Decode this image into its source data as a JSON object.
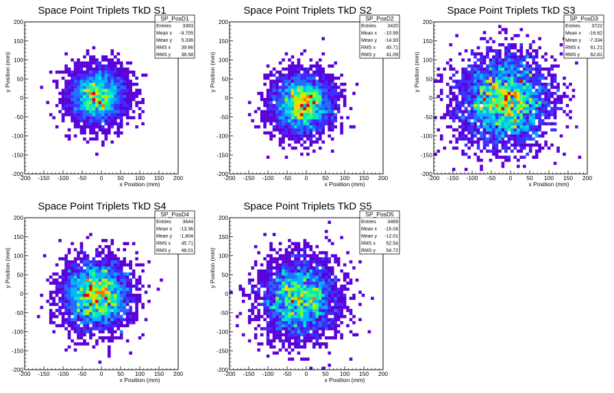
{
  "colormap": [
    "#5a00d8",
    "#3d2cff",
    "#1f6dff",
    "#00b4ff",
    "#00e6c8",
    "#3cff78",
    "#b4f000",
    "#ffd200",
    "#ff6e00",
    "#e60000"
  ],
  "chart_data": [
    {
      "type": "heatmap",
      "title": "Space Point Triplets TkD S1",
      "xlabel": "x Position (mm)",
      "ylabel": "y Position (mm)",
      "xlim": [
        -200,
        200
      ],
      "ylim": [
        -200,
        200
      ],
      "xticks": [
        -200,
        -150,
        -100,
        -50,
        0,
        50,
        100,
        150,
        200
      ],
      "yticks": [
        -200,
        -150,
        -100,
        -50,
        0,
        50,
        100,
        150,
        200
      ],
      "bins": 50,
      "stats": {
        "name": "SP_PosD1",
        "rows": [
          {
            "label": "Entries",
            "value": "3393"
          },
          {
            "label": "Mean x",
            "value": "-9.705"
          },
          {
            "label": "Mean y",
            "value": "5.336"
          },
          {
            "label": "RMS x",
            "value": "39.66"
          },
          {
            "label": "RMS y",
            "value": "38.58"
          }
        ]
      },
      "entries": 3393,
      "mean_x": -9.705,
      "mean_y": 5.336,
      "rms_x": 39.66,
      "rms_y": 38.58
    },
    {
      "type": "heatmap",
      "title": "Space Point Triplets TkD S2",
      "xlabel": "x Position (mm)",
      "ylabel": "y Position (mm)",
      "xlim": [
        -200,
        200
      ],
      "ylim": [
        -200,
        200
      ],
      "xticks": [
        -200,
        -150,
        -100,
        -50,
        0,
        50,
        100,
        150,
        200
      ],
      "yticks": [
        -200,
        -150,
        -100,
        -50,
        0,
        50,
        100,
        150,
        200
      ],
      "bins": 50,
      "stats": {
        "name": "SP_PosD2",
        "rows": [
          {
            "label": "Entries",
            "value": "3420"
          },
          {
            "label": "Mean x",
            "value": "-10.99"
          },
          {
            "label": "Mean y",
            "value": "-14.93"
          },
          {
            "label": "RMS x",
            "value": "40.71"
          },
          {
            "label": "RMS y",
            "value": "41.09"
          }
        ]
      },
      "entries": 3420,
      "mean_x": -10.99,
      "mean_y": -14.93,
      "rms_x": 40.71,
      "rms_y": 41.09
    },
    {
      "type": "heatmap",
      "title": "Space Point Triplets TkD S3",
      "xlabel": "x Position (mm)",
      "ylabel": "y Position (mm)",
      "xlim": [
        -200,
        200
      ],
      "ylim": [
        -200,
        200
      ],
      "xticks": [
        -200,
        -150,
        -100,
        -50,
        0,
        50,
        100,
        150,
        200
      ],
      "yticks": [
        -200,
        -150,
        -100,
        -50,
        0,
        50,
        100,
        150,
        200
      ],
      "bins": 50,
      "stats": {
        "name": "SP_PosD3",
        "rows": [
          {
            "label": "Entries",
            "value": "3722"
          },
          {
            "label": "Mean x",
            "value": "-16.62"
          },
          {
            "label": "Mean y",
            "value": "-7.334"
          },
          {
            "label": "RMS x",
            "value": "61.21"
          },
          {
            "label": "RMS y",
            "value": "62.81"
          }
        ]
      },
      "entries": 3722,
      "mean_x": -16.62,
      "mean_y": -7.334,
      "rms_x": 61.21,
      "rms_y": 62.81
    },
    {
      "type": "heatmap",
      "title": "Space Point Triplets TkD S4",
      "xlabel": "x Position (mm)",
      "ylabel": "y Position (mm)",
      "xlim": [
        -200,
        200
      ],
      "ylim": [
        -200,
        200
      ],
      "xticks": [
        -200,
        -150,
        -100,
        -50,
        0,
        50,
        100,
        150,
        200
      ],
      "yticks": [
        -200,
        -150,
        -100,
        -50,
        0,
        50,
        100,
        150,
        200
      ],
      "bins": 50,
      "stats": {
        "name": "SP_PosD4",
        "rows": [
          {
            "label": "Entries",
            "value": "3644"
          },
          {
            "label": "Mean x",
            "value": "-13.36"
          },
          {
            "label": "Mean y",
            "value": "-1.804"
          },
          {
            "label": "RMS x",
            "value": "45.71"
          },
          {
            "label": "RMS y",
            "value": "48.01"
          }
        ]
      },
      "entries": 3644,
      "mean_x": -13.36,
      "mean_y": -1.804,
      "rms_x": 45.71,
      "rms_y": 48.01
    },
    {
      "type": "heatmap",
      "title": "Space Point Triplets TkD S5",
      "xlabel": "x Position (mm)",
      "ylabel": "y Position (mm)",
      "xlim": [
        -200,
        200
      ],
      "ylim": [
        -200,
        200
      ],
      "xticks": [
        -200,
        -150,
        -100,
        -50,
        0,
        50,
        100,
        150,
        200
      ],
      "yticks": [
        -200,
        -150,
        -100,
        -50,
        0,
        50,
        100,
        150,
        200
      ],
      "bins": 50,
      "stats": {
        "name": "SP_PosD5",
        "rows": [
          {
            "label": "Entries",
            "value": "3469"
          },
          {
            "label": "Mean x",
            "value": "-16.04"
          },
          {
            "label": "Mean y",
            "value": "-12.01"
          },
          {
            "label": "RMS x",
            "value": "52.54"
          },
          {
            "label": "RMS y",
            "value": "54.72"
          }
        ]
      },
      "entries": 3469,
      "mean_x": -16.04,
      "mean_y": -12.01,
      "rms_x": 52.54,
      "rms_y": 54.72
    }
  ]
}
